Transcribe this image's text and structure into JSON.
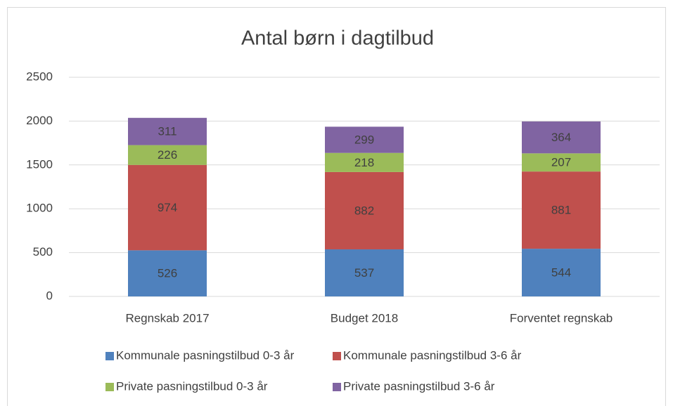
{
  "chart_data": {
    "type": "stacked_bar",
    "title": "Antal børn i dagtilbud",
    "categories": [
      "Regnskab 2017",
      "Budget 2018",
      "Forventet regnskab"
    ],
    "series": [
      {
        "name": "Kommunale pasningstilbud 0-3 år",
        "color": "#4f81bd",
        "values": [
          526,
          537,
          544
        ]
      },
      {
        "name": "Kommunale pasningstilbud 3-6 år",
        "color": "#c0504d",
        "values": [
          974,
          882,
          881
        ]
      },
      {
        "name": "Private pasningstilbud 0-3 år",
        "color": "#9bbb59",
        "values": [
          226,
          218,
          207
        ]
      },
      {
        "name": "Private pasningstilbud 3-6 år",
        "color": "#8064a2",
        "values": [
          311,
          299,
          364
        ]
      }
    ],
    "ylim": [
      0,
      2500
    ],
    "yticks": [
      0,
      500,
      1000,
      1500,
      2000,
      2500
    ],
    "grid": true,
    "legend": "bottom"
  }
}
